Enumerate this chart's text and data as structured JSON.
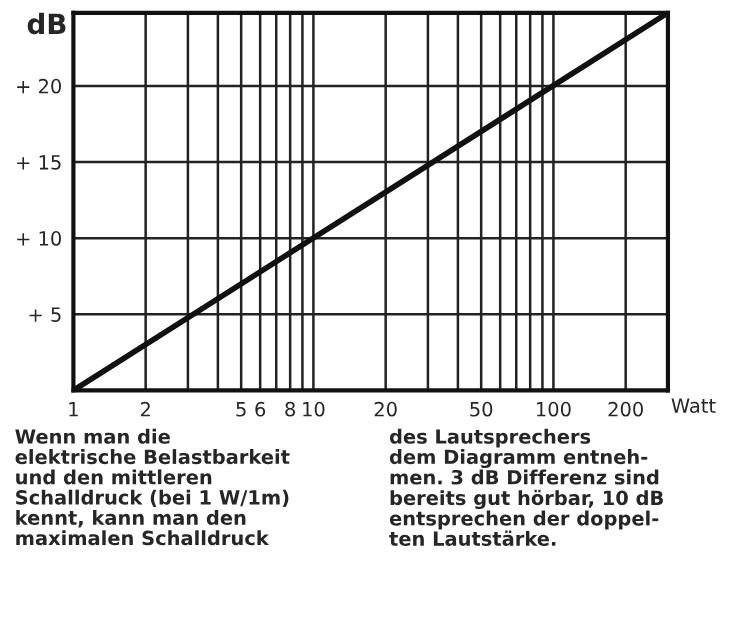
{
  "chart_data": {
    "type": "line",
    "xlabel": "Watt",
    "ylabel": "dB",
    "log": "x",
    "x": [
      1,
      300
    ],
    "series": [
      {
        "color": "#111111",
        "values": [
          0,
          24.8
        ]
      }
    ],
    "xlim": [
      1,
      300
    ],
    "ylim": [
      0,
      24.8
    ],
    "xticks": [
      1,
      2,
      {
        "value": 3,
        "label": null
      },
      {
        "value": 4,
        "label": null
      },
      5,
      6,
      {
        "value": 7,
        "label": null
      },
      8,
      {
        "value": 9,
        "label": null
      },
      10,
      20,
      {
        "value": 30,
        "label": null
      },
      {
        "value": 40,
        "label": null
      },
      50,
      {
        "value": 60,
        "label": null
      },
      {
        "value": 70,
        "label": null
      },
      {
        "value": 80,
        "label": null
      },
      {
        "value": 90,
        "label": null
      },
      100,
      200,
      {
        "value": 300,
        "label": null
      }
    ],
    "yticks": [
      {
        "value": 5,
        "label": "+ 5"
      },
      {
        "value": 10,
        "label": "+ 10"
      },
      {
        "value": 15,
        "label": "+ 15"
      },
      {
        "value": 20,
        "label": "+ 20"
      }
    ],
    "grid": true,
    "line_style": "solid",
    "marker": "none",
    "annotations": [
      "Wenn man die\nelektrische Belastbarkeit\nund den mittleren\nSchalldruck (bei 1 W/1m)\nkennt, kann man den\nmaximalen Schalldruck",
      "des Lautsprechers\ndem Diagramm entneh-\nmen. 3 dB Differenz sind\nbereits gut hörbar, 10 dB\nentsprechen der doppel-\nten Lautstärke."
    ]
  }
}
